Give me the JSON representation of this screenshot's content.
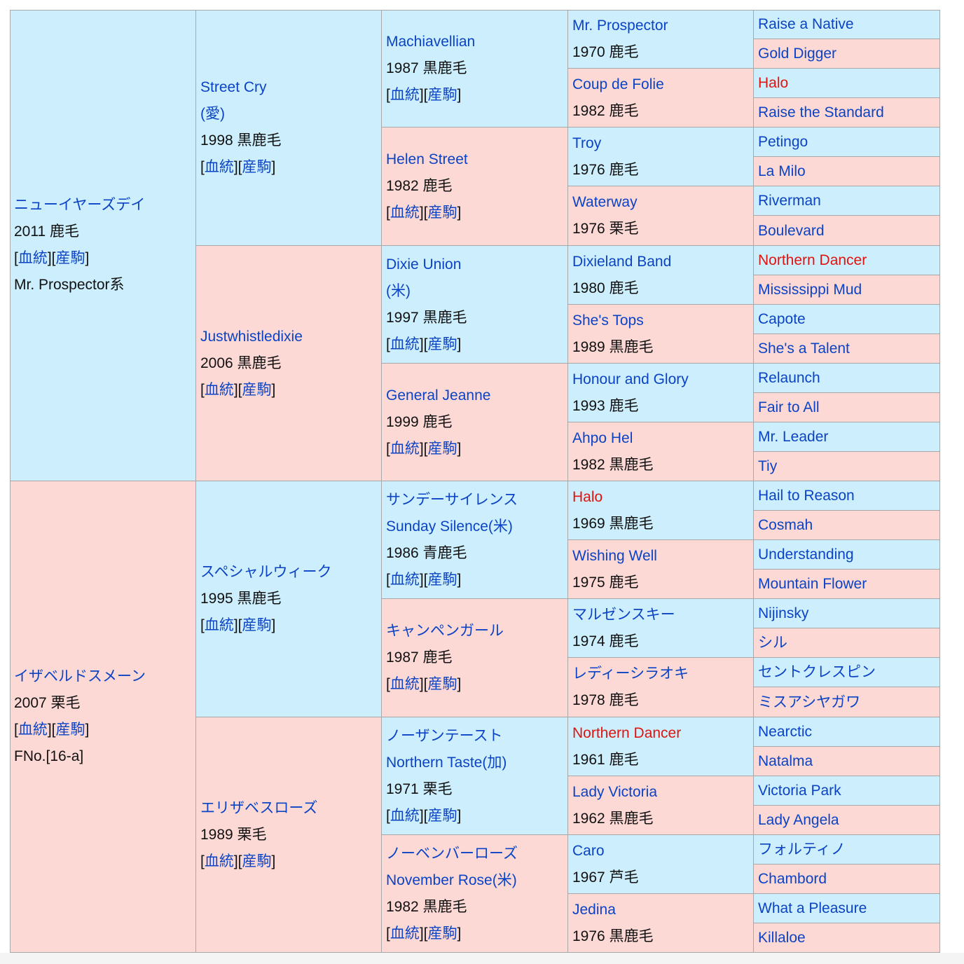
{
  "links": {
    "bloodline": "血統",
    "produce": "産駒"
  },
  "col1": [
    {
      "id": "sire",
      "name": "ニューイヤーズデイ",
      "year_color": "2011 鹿毛",
      "extra": "Mr. Prospector系"
    },
    {
      "id": "dam",
      "name": "イザベルドスメーン",
      "year_color": "2007 栗毛",
      "extra": "FNo.[16-a]"
    }
  ],
  "col2": [
    {
      "id": "ss",
      "name": "Street Cry",
      "country": "(愛)",
      "year_color": "1998 黒鹿毛"
    },
    {
      "id": "sd",
      "name": "Justwhistledixie",
      "year_color": "2006 黒鹿毛"
    },
    {
      "id": "ds",
      "name": "スペシャルウィーク",
      "year_color": "1995 黒鹿毛"
    },
    {
      "id": "dd",
      "name": "エリザベスローズ",
      "year_color": "1989 栗毛"
    }
  ],
  "col3": [
    {
      "name": "Machiavellian",
      "year_color": "1987 黒鹿毛"
    },
    {
      "name": "Helen Street",
      "year_color": "1982 鹿毛"
    },
    {
      "name": "Dixie Union",
      "country": "(米)",
      "year_color": "1997 黒鹿毛"
    },
    {
      "name": "General Jeanne",
      "year_color": "1999 鹿毛"
    },
    {
      "name": "サンデーサイレンス",
      "country": "Sunday Silence(米)",
      "year_color": "1986 青鹿毛"
    },
    {
      "name": "キャンペンガール",
      "year_color": "1987 鹿毛"
    },
    {
      "name": "ノーザンテースト",
      "country": "Northern Taste(加)",
      "year_color": "1971 栗毛"
    },
    {
      "name": "ノーベンバーローズ",
      "country": "November Rose(米)",
      "year_color": "1982 黒鹿毛"
    }
  ],
  "col4": [
    {
      "name": "Mr. Prospector",
      "year_color": "1970 鹿毛",
      "red": false
    },
    {
      "name": "Coup de Folie",
      "year_color": "1982 鹿毛",
      "red": false
    },
    {
      "name": "Troy",
      "year_color": "1976 鹿毛",
      "red": false
    },
    {
      "name": "Waterway",
      "year_color": "1976 栗毛",
      "red": false
    },
    {
      "name": "Dixieland Band",
      "year_color": "1980 鹿毛",
      "red": false
    },
    {
      "name": "She's Tops",
      "year_color": "1989 黒鹿毛",
      "red": false
    },
    {
      "name": "Honour and Glory",
      "year_color": "1993 鹿毛",
      "red": false
    },
    {
      "name": "Ahpo Hel",
      "year_color": "1982 黒鹿毛",
      "red": false
    },
    {
      "name": "Halo",
      "year_color": "1969 黒鹿毛",
      "red": true
    },
    {
      "name": "Wishing Well",
      "year_color": "1975 鹿毛",
      "red": false
    },
    {
      "name": "マルゼンスキー",
      "year_color": "1974 鹿毛",
      "red": false
    },
    {
      "name": "レディーシラオキ",
      "year_color": "1978 鹿毛",
      "red": false
    },
    {
      "name": "Northern Dancer",
      "year_color": "1961 鹿毛",
      "red": true
    },
    {
      "name": "Lady Victoria",
      "year_color": "1962 黒鹿毛",
      "red": false
    },
    {
      "name": "Caro",
      "year_color": "1967 芦毛",
      "red": false
    },
    {
      "name": "Jedina",
      "year_color": "1976 黒鹿毛",
      "red": false
    }
  ],
  "col5": [
    {
      "name": "Raise a Native",
      "red": false
    },
    {
      "name": "Gold Digger",
      "red": false
    },
    {
      "name": "Halo",
      "red": true
    },
    {
      "name": "Raise the Standard",
      "red": false
    },
    {
      "name": "Petingo",
      "red": false
    },
    {
      "name": "La Milo",
      "red": false
    },
    {
      "name": "Riverman",
      "red": false
    },
    {
      "name": "Boulevard",
      "red": false
    },
    {
      "name": "Northern Dancer",
      "red": true
    },
    {
      "name": "Mississippi Mud",
      "red": false
    },
    {
      "name": "Capote",
      "red": false
    },
    {
      "name": "She's a Talent",
      "red": false
    },
    {
      "name": "Relaunch",
      "red": false
    },
    {
      "name": "Fair to All",
      "red": false
    },
    {
      "name": "Mr. Leader",
      "red": false
    },
    {
      "name": "Tiy",
      "red": false
    },
    {
      "name": "Hail to Reason",
      "red": false
    },
    {
      "name": "Cosmah",
      "red": false
    },
    {
      "name": "Understanding",
      "red": false
    },
    {
      "name": "Mountain Flower",
      "red": false
    },
    {
      "name": "Nijinsky",
      "red": false
    },
    {
      "name": "シル",
      "red": false
    },
    {
      "name": "セントクレスピン",
      "red": false
    },
    {
      "name": "ミスアシヤガワ",
      "red": false
    },
    {
      "name": "Nearctic",
      "red": false
    },
    {
      "name": "Natalma",
      "red": false
    },
    {
      "name": "Victoria Park",
      "red": false
    },
    {
      "name": "Lady Angela",
      "red": false
    },
    {
      "name": "フォルティノ",
      "red": false
    },
    {
      "name": "Chambord",
      "red": false
    },
    {
      "name": "What a Pleasure",
      "red": false
    },
    {
      "name": "Killaloe",
      "red": false
    }
  ]
}
